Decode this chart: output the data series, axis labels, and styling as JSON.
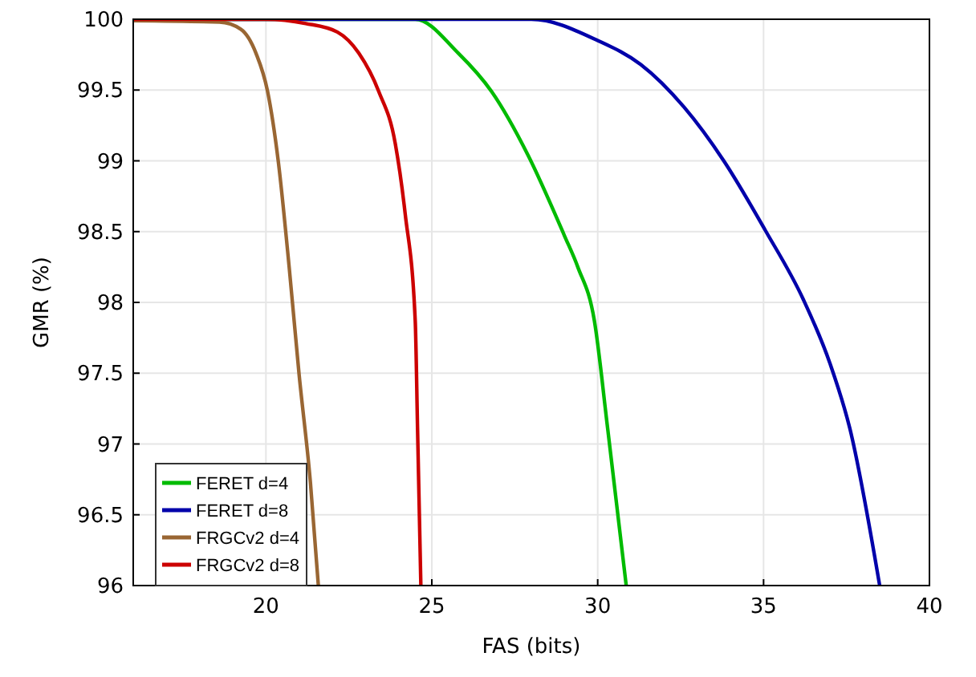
{
  "chart_data": {
    "type": "line",
    "xlabel": "FAS (bits)",
    "ylabel": "GMR (%)",
    "xlim": [
      16,
      40
    ],
    "ylim": [
      96,
      100
    ],
    "xticks": [
      20,
      25,
      30,
      35,
      40
    ],
    "yticks": [
      96,
      96.5,
      97,
      97.5,
      98,
      98.5,
      99,
      99.5,
      100
    ],
    "grid": true,
    "legend": "bottom left",
    "line_style": "solid",
    "marker": "none",
    "series": [
      {
        "name": "FERET d=4",
        "color": "#00bb00",
        "x": [
          16,
          24.5,
          25.8,
          26.8,
          27.9,
          29.0,
          29.4,
          29.9,
          30.3,
          30.86
        ],
        "values": [
          100,
          100,
          99.76,
          99.49,
          99.04,
          98.47,
          98.25,
          97.87,
          97.11,
          96.0
        ]
      },
      {
        "name": "FERET d=8",
        "color": "#0000aa",
        "x": [
          16,
          24,
          28,
          30.0,
          31.3,
          32.6,
          33.8,
          35.05,
          36.2,
          37.0,
          37.6,
          38.5
        ],
        "values": [
          100,
          100,
          100,
          99.85,
          99.68,
          99.38,
          99.0,
          98.51,
          98.02,
          97.57,
          97.11,
          96.0
        ]
      },
      {
        "name": "FRGCv2 d=4",
        "color": "#996633",
        "x": [
          16,
          18.6,
          19.24,
          19.7,
          20.05,
          20.37,
          20.7,
          21.0,
          21.34,
          21.58
        ],
        "values": [
          99.99,
          99.98,
          99.93,
          99.76,
          99.49,
          99.0,
          98.25,
          97.49,
          96.73,
          96.0
        ]
      },
      {
        "name": "FRGCv2 d=8",
        "color": "#cc0000",
        "x": [
          16,
          20.0,
          21.2,
          22.15,
          22.8,
          23.4,
          23.9,
          24.2,
          24.5,
          24.57,
          24.67
        ],
        "values": [
          100,
          100,
          99.97,
          99.91,
          99.76,
          99.49,
          99.12,
          98.62,
          97.87,
          97.11,
          96.0
        ]
      }
    ]
  }
}
